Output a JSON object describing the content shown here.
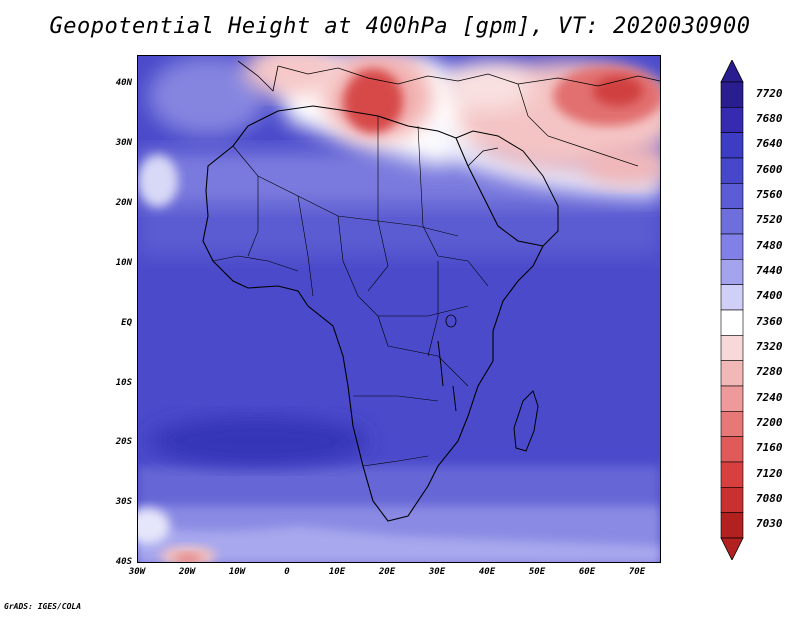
{
  "title": "Geopotential Height at 400hPa [gpm], VT: 2020030900",
  "footer": "GrADS: IGES/COLA",
  "map": {
    "lat_labels": [
      "40N",
      "30N",
      "20N",
      "10N",
      "EQ",
      "10S",
      "20S",
      "30S",
      "40S"
    ],
    "lon_labels": [
      "30W",
      "20W",
      "10W",
      "0",
      "10E",
      "20E",
      "30E",
      "40E",
      "50E",
      "60E",
      "70E"
    ]
  },
  "colorbar": {
    "labels": [
      "7720",
      "7680",
      "7640",
      "7600",
      "7560",
      "7520",
      "7480",
      "7440",
      "7400",
      "7360",
      "7320",
      "7280",
      "7240",
      "7200",
      "7160",
      "7120",
      "7080",
      "7030"
    ],
    "colors": [
      "#2a1d8f",
      "#352ab0",
      "#3c3cc4",
      "#4747cc",
      "#5c5cd6",
      "#6e6edc",
      "#8080e6",
      "#a3a3ee",
      "#cfcff7",
      "#ffffff",
      "#f7d9d9",
      "#f2b8b8",
      "#ee9a9a",
      "#e87878",
      "#e15a5a",
      "#d84040",
      "#c93030",
      "#b22020"
    ]
  },
  "colors": {
    "ocean_deep": "#4343c8",
    "desert_low": "#e14444",
    "border": "#000000"
  }
}
